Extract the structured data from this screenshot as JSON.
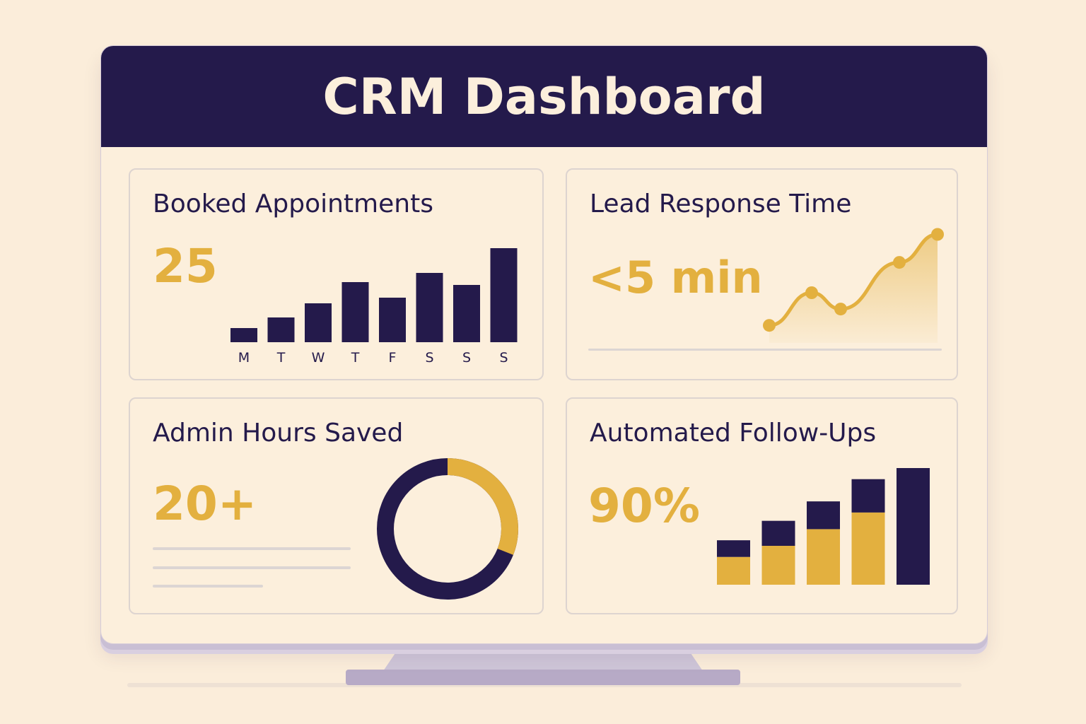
{
  "header": {
    "title": "CRM Dashboard"
  },
  "colors": {
    "navy": "#241a4b",
    "gold": "#e3b03f",
    "background": "#fbedda",
    "panel": "#fcefdc",
    "border": "#ddd4d0"
  },
  "cards": {
    "booked_appointments": {
      "title": "Booked Appointments",
      "value": "25"
    },
    "lead_response_time": {
      "title": "Lead Response Time",
      "value": "<5 min"
    },
    "admin_hours_saved": {
      "title": "Admin Hours Saved",
      "value": "20+"
    },
    "automated_follow_ups": {
      "title": "Automated Follow-Ups",
      "value": "90%"
    }
  },
  "chart_data": [
    {
      "type": "bar",
      "categories": [
        "M",
        "T",
        "W",
        "T",
        "F",
        "S",
        "S",
        "S"
      ],
      "values": [
        2,
        3.5,
        5.5,
        8.5,
        6.3,
        9.8,
        8.1,
        13.3
      ],
      "ylim": [
        0,
        14
      ],
      "grid": false,
      "color": "#241a4b"
    },
    {
      "type": "area",
      "x": [
        1,
        2,
        3,
        4,
        5
      ],
      "values": [
        1.2,
        4.0,
        2.6,
        6.6,
        9.0
      ],
      "ylim": [
        0,
        10
      ],
      "grid": false,
      "color": "#e3b03f"
    },
    {
      "type": "pie",
      "categories": [
        "navy",
        "gold"
      ],
      "values": [
        0.69,
        0.31
      ],
      "colors": [
        "#241a4b",
        "#e3b03f"
      ]
    },
    {
      "type": "bar",
      "stacked": true,
      "categories": [
        "1",
        "2",
        "3",
        "4",
        "5"
      ],
      "series": [
        {
          "values": [
            1.0,
            1.4,
            2.0,
            2.6,
            0
          ],
          "color": "#e3b03f"
        },
        {
          "values": [
            0.6,
            0.9,
            1.0,
            1.2,
            4.2
          ],
          "color": "#241a4b"
        }
      ],
      "ylim": [
        0,
        4.2
      ],
      "grid": false
    }
  ]
}
